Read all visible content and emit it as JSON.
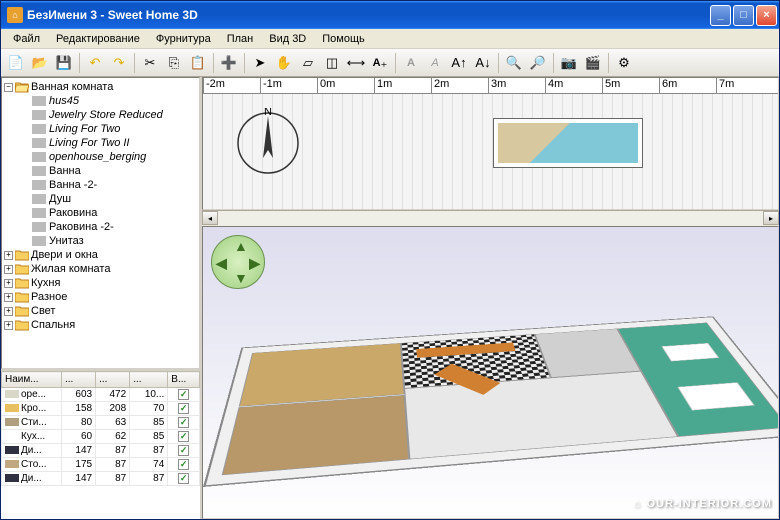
{
  "title": "БезИмени 3 - Sweet Home 3D",
  "menu": [
    "Файл",
    "Редактирование",
    "Фурнитура",
    "План",
    "Вид 3D",
    "Помощь"
  ],
  "tree": {
    "root": "Ванная комната",
    "children": [
      {
        "label": "hus45",
        "italic": true
      },
      {
        "label": "Jewelry Store Reduced",
        "italic": true
      },
      {
        "label": "Living For Two",
        "italic": true
      },
      {
        "label": "Living For Two II",
        "italic": true
      },
      {
        "label": "openhouse_berging",
        "italic": true
      },
      {
        "label": "Ванна",
        "italic": false
      },
      {
        "label": "Ванна -2-",
        "italic": false
      },
      {
        "label": "Душ",
        "italic": false
      },
      {
        "label": "Раковина",
        "italic": false
      },
      {
        "label": "Раковина -2-",
        "italic": false
      },
      {
        "label": "Унитаз",
        "italic": false
      }
    ],
    "categories": [
      "Двери и окна",
      "Жилая комната",
      "Кухня",
      "Разное",
      "Свет",
      "Спальня"
    ]
  },
  "table": {
    "headers": [
      "Наим...",
      "...",
      "...",
      "...",
      "В..."
    ],
    "rows": [
      [
        "opе...",
        "603",
        "472",
        "10...",
        true
      ],
      [
        "Кро...",
        "158",
        "208",
        "70",
        true
      ],
      [
        "Сти...",
        "80",
        "63",
        "85",
        true
      ],
      [
        "Кух...",
        "60",
        "62",
        "85",
        true
      ],
      [
        "Ди...",
        "147",
        "87",
        "87",
        true
      ],
      [
        "Сто...",
        "175",
        "87",
        "74",
        true
      ],
      [
        "Ди...",
        "147",
        "87",
        "87",
        true
      ]
    ],
    "row_colors": [
      "#d8d8c8",
      "#e8c060",
      "#b0a080",
      "#ffffff",
      "#303040",
      "#c0a880",
      "#303040"
    ]
  },
  "ruler": [
    "-2m",
    "-1m",
    "0m",
    "1m",
    "2m",
    "3m",
    "4m",
    "5m",
    "6m",
    "7m"
  ],
  "compass_label": "N",
  "watermark": "OUR-INTERIOR.COM",
  "colors": {
    "titlebar_top": "#3a95ff",
    "titlebar_mid": "#0d56c8",
    "bg": "#ece9d8",
    "accent": "#2a8a2a"
  }
}
